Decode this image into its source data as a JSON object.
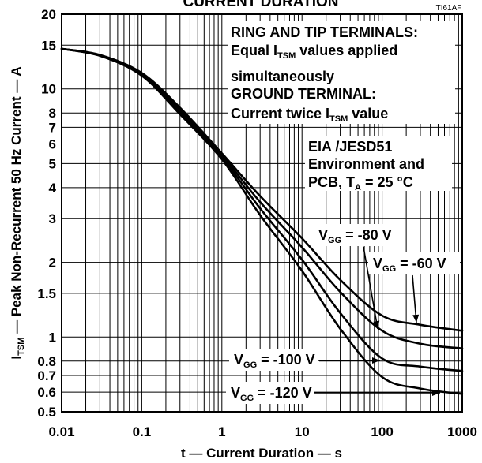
{
  "title": "CURRENT DURATION",
  "figure_code": "TI61AF",
  "colors": {
    "curve": "#000000",
    "grid": "#000000",
    "background": "#ffffff"
  },
  "chart_data": {
    "type": "line",
    "x_scale": "log",
    "y_scale": "log",
    "xlim": [
      0.01,
      1000
    ],
    "ylim": [
      0.5,
      20
    ],
    "grid": true,
    "xlabel": "t — Current Duration — s",
    "ylabel": {
      "main": "I",
      "sub": "TSM",
      "rest": " — Peak Non-Recurrent 50 Hz Current — A"
    },
    "xticks": [
      "0.01",
      "0.1",
      "1",
      "10",
      "100",
      "1000"
    ],
    "yticks": [
      "20",
      "15",
      "10",
      "8",
      "7",
      "6",
      "5",
      "4",
      "3",
      "2",
      "1.5",
      "1",
      "0.8",
      "0.7",
      "0.6",
      "0.5"
    ],
    "x": [
      0.01,
      0.03,
      0.1,
      0.3,
      1,
      3,
      10,
      30,
      100,
      300,
      1000
    ],
    "series": [
      {
        "label": {
          "main": "V",
          "sub": "GG",
          "rest": " = -60 V"
        },
        "values": [
          14.5,
          13.7,
          11.6,
          8.4,
          5.5,
          3.7,
          2.5,
          1.7,
          1.22,
          1.12,
          1.06
        ]
      },
      {
        "label": {
          "main": "V",
          "sub": "GG",
          "rest": " = -80 V"
        },
        "values": [
          14.5,
          13.7,
          11.5,
          8.2,
          5.4,
          3.5,
          2.3,
          1.52,
          1.06,
          0.94,
          0.9
        ]
      },
      {
        "label": {
          "main": "V",
          "sub": "GG",
          "rest": " = -100 V"
        },
        "values": [
          14.5,
          13.6,
          11.4,
          8.0,
          5.3,
          3.3,
          2.05,
          1.25,
          0.82,
          0.76,
          0.73
        ]
      },
      {
        "label": {
          "main": "V",
          "sub": "GG",
          "rest": " = -120 V"
        },
        "values": [
          14.5,
          13.6,
          11.3,
          7.9,
          5.2,
          3.1,
          1.85,
          1.08,
          0.69,
          0.62,
          0.59
        ]
      }
    ],
    "notes": {
      "line1": "RING AND TIP TERMINALS:",
      "line2": {
        "a": "Equal I",
        "sub": "TSM",
        "b": " values applied"
      },
      "line3": "simultaneously",
      "line4": "GROUND TERMINAL:",
      "line5": {
        "a": "Current twice I",
        "sub": "TSM",
        "b": " value"
      }
    },
    "conditions": {
      "line1": "EIA /JESD51",
      "line2": "Environment and",
      "line3": {
        "a": "PCB, T",
        "sub": "A",
        "b": " = 25 °C"
      }
    }
  }
}
